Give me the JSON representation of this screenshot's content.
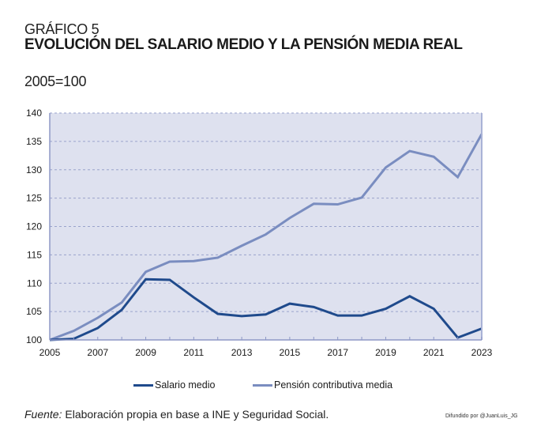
{
  "header": {
    "supertitle": "GRÁFICO 5",
    "title": "EVOLUCIÓN DEL SALARIO MEDIO Y LA PENSIÓN MEDIA REAL",
    "subtitle": "2005=100"
  },
  "footer": {
    "source_label": "Fuente:",
    "source_text": "Elaboración propia en base a INE y Seguridad Social.",
    "credit": "Difundido por @JuanLuis_JG"
  },
  "colors": {
    "plot_background": "#dee1ef",
    "grid": "#9aa3cc",
    "axis": "#8d98c6",
    "salario": "#1f4a8c",
    "pension": "#7a8dc0"
  },
  "chart_data": {
    "type": "line",
    "title": "EVOLUCIÓN DEL SALARIO MEDIO Y LA PENSIÓN MEDIA REAL",
    "subtitle": "2005=100",
    "xlabel": "",
    "ylabel": "",
    "x": [
      2005,
      2006,
      2007,
      2008,
      2009,
      2010,
      2011,
      2012,
      2013,
      2014,
      2015,
      2016,
      2017,
      2018,
      2019,
      2020,
      2021,
      2022,
      2023
    ],
    "xticks": [
      "2005",
      "2007",
      "2009",
      "2011",
      "2013",
      "2015",
      "2017",
      "2019",
      "2021",
      "2023"
    ],
    "xlim": [
      2005,
      2023
    ],
    "ylim": [
      100,
      140
    ],
    "yticks": [
      "100",
      "105",
      "110",
      "115",
      "120",
      "125",
      "130",
      "135",
      "140"
    ],
    "grid": true,
    "legend_position": "bottom-center",
    "series": [
      {
        "name": "Salario medio",
        "values": [
          100.0,
          100.2,
          102.1,
          105.3,
          110.7,
          110.6,
          107.5,
          104.6,
          104.2,
          104.5,
          106.4,
          105.8,
          104.3,
          104.3,
          105.5,
          107.7,
          105.5,
          100.4,
          102.0
        ]
      },
      {
        "name": "Pensión contributiva media",
        "values": [
          100.0,
          101.6,
          103.9,
          106.6,
          112.0,
          113.8,
          113.9,
          114.5,
          116.6,
          118.6,
          121.5,
          124.0,
          123.9,
          125.1,
          130.4,
          133.3,
          132.3,
          128.7,
          136.3
        ]
      }
    ]
  }
}
